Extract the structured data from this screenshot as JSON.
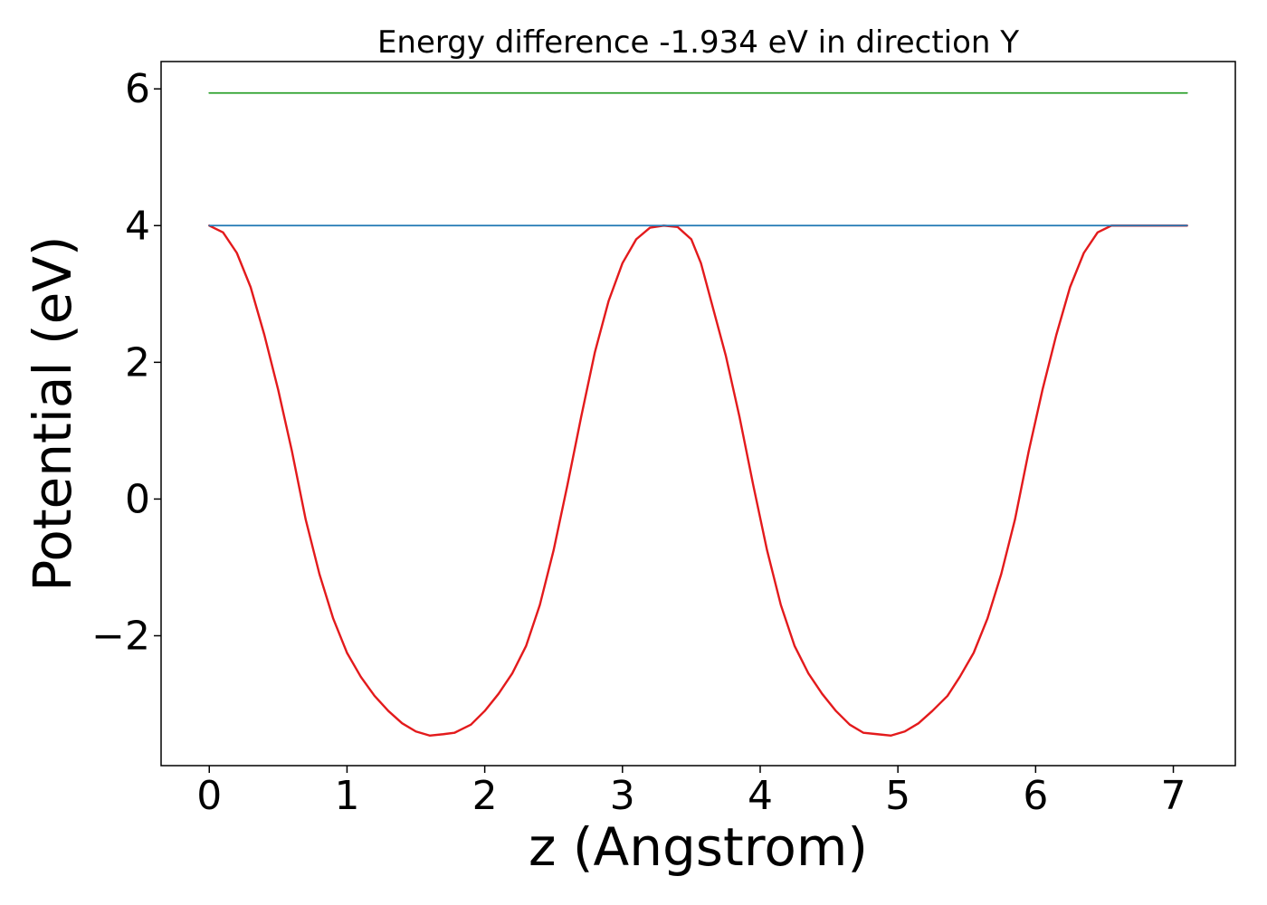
{
  "chart_data": {
    "type": "line",
    "title": "Energy difference -1.934 eV in direction Y",
    "xlabel": "z (Angstrom)",
    "ylabel": "Potential (eV)",
    "xlim": [
      -0.35,
      7.45
    ],
    "ylim": [
      -3.9,
      6.4
    ],
    "xticks": [
      0,
      1,
      2,
      3,
      4,
      5,
      6,
      7
    ],
    "xtick_labels": [
      "0",
      "1",
      "2",
      "3",
      "4",
      "5",
      "6",
      "7"
    ],
    "yticks": [
      -2,
      0,
      2,
      4,
      6
    ],
    "ytick_labels": [
      "−2",
      "0",
      "2",
      "4",
      "6"
    ],
    "grid": false,
    "legend": "none",
    "series": [
      {
        "color": "#e31a1c",
        "x": [
          0.0,
          0.1,
          0.2,
          0.3,
          0.4,
          0.5,
          0.6,
          0.7,
          0.8,
          0.9,
          1.0,
          1.1,
          1.2,
          1.3,
          1.4,
          1.5,
          1.6,
          1.7,
          1.78,
          1.9,
          2.0,
          2.1,
          2.2,
          2.3,
          2.4,
          2.5,
          2.6,
          2.7,
          2.8,
          2.9,
          3.0,
          3.1,
          3.2,
          3.3,
          3.4,
          3.5,
          3.57,
          3.65,
          3.75,
          3.85,
          3.95,
          4.05,
          4.15,
          4.25,
          4.35,
          4.45,
          4.55,
          4.65,
          4.75,
          4.85,
          4.95,
          5.05,
          5.15,
          5.25,
          5.36,
          5.45,
          5.55,
          5.65,
          5.75,
          5.85,
          5.95,
          6.05,
          6.15,
          6.25,
          6.35,
          6.45,
          6.55,
          6.65,
          6.75,
          6.85,
          6.95,
          7.05,
          7.1
        ],
        "y": [
          4.0,
          3.9,
          3.6,
          3.1,
          2.4,
          1.6,
          0.7,
          -0.3,
          -1.1,
          -1.75,
          -2.25,
          -2.6,
          -2.88,
          -3.1,
          -3.28,
          -3.4,
          -3.46,
          -3.44,
          -3.42,
          -3.3,
          -3.1,
          -2.85,
          -2.55,
          -2.15,
          -1.55,
          -0.75,
          0.2,
          1.2,
          2.15,
          2.9,
          3.45,
          3.8,
          3.97,
          4.0,
          3.98,
          3.8,
          3.45,
          2.85,
          2.1,
          1.2,
          0.2,
          -0.75,
          -1.55,
          -2.15,
          -2.55,
          -2.85,
          -3.1,
          -3.3,
          -3.42,
          -3.44,
          -3.46,
          -3.4,
          -3.28,
          -3.1,
          -2.88,
          -2.6,
          -2.25,
          -1.75,
          -1.1,
          -0.3,
          0.7,
          1.6,
          2.4,
          3.1,
          3.6,
          3.9,
          4.0,
          4.0,
          4.0,
          4.0,
          4.0,
          4.0,
          4.0
        ]
      },
      {
        "color": "#1f77b4",
        "x": [
          0.0,
          7.1
        ],
        "y": [
          4.0,
          4.0
        ]
      },
      {
        "color": "#2ca02c",
        "x": [
          0.0,
          7.1
        ],
        "y": [
          5.94,
          5.94
        ]
      }
    ]
  }
}
